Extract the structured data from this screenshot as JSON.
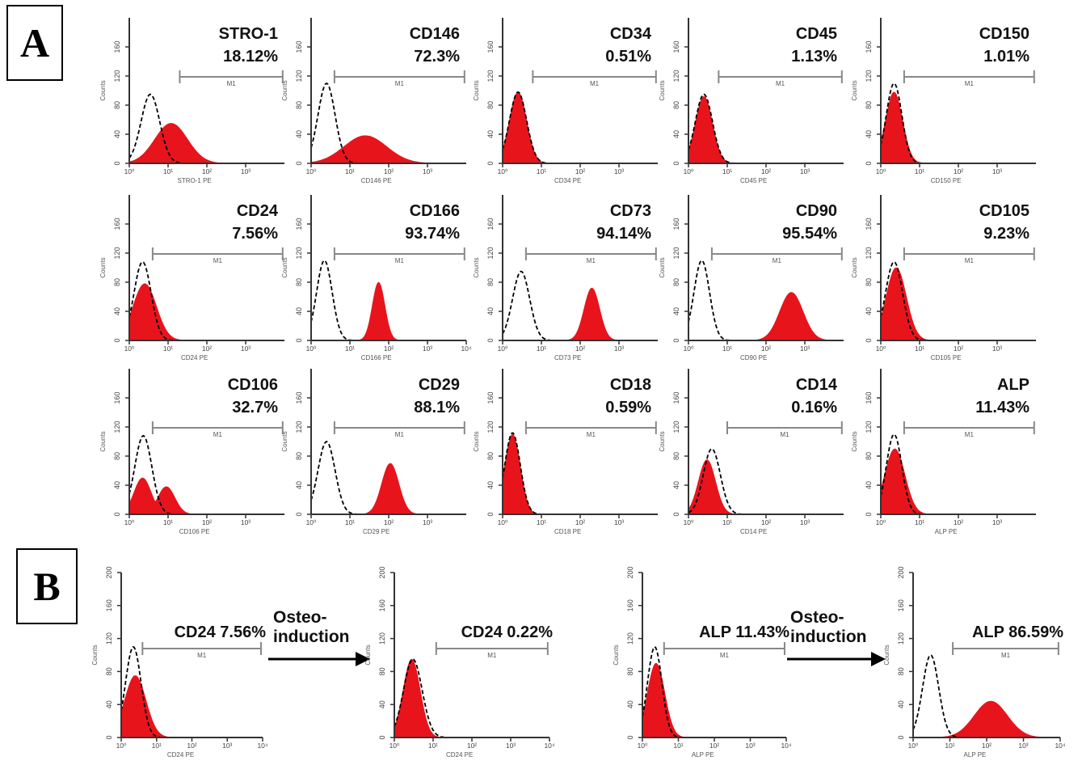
{
  "panels": {
    "a_label": "A",
    "b_label": "B"
  },
  "colors": {
    "stained": "#e8141c",
    "isotype": "#000000",
    "axis": "#333333",
    "gate": "#888888"
  },
  "arrows": [
    {
      "line1": "Osteo-",
      "line2": "induction"
    },
    {
      "line1": "Osteo-",
      "line2": "induction"
    }
  ],
  "chart_data": [
    {
      "type": "histogram",
      "marker": "STRO-1",
      "percent": "18.12%",
      "gate_label": "M1",
      "xlabel": "STRO-1 PE",
      "ylabel": "Counts",
      "x_scale": "log",
      "xlim": [
        1,
        10000
      ],
      "ylim": [
        0,
        200
      ],
      "yticks": [
        "0",
        "40",
        "80",
        "120",
        "160"
      ],
      "xticks": [
        "10⁰",
        "10¹",
        "10²",
        "10³"
      ],
      "gate": [
        20,
        9000
      ],
      "isotype": {
        "mode": 3.5,
        "width": 0.24,
        "peak": 95
      },
      "stained": [
        {
          "mode": 12,
          "width": 0.42,
          "peak": 55
        }
      ]
    },
    {
      "type": "histogram",
      "marker": "CD146",
      "percent": "72.3%",
      "gate_label": "M1",
      "xlabel": "CD146 PE",
      "ylabel": "Counts",
      "x_scale": "log",
      "xlim": [
        1,
        10000
      ],
      "ylim": [
        0,
        200
      ],
      "yticks": [
        "0",
        "40",
        "80",
        "120",
        "160"
      ],
      "xticks": [
        "10⁰",
        "10¹",
        "10²",
        "10³"
      ],
      "gate": [
        4,
        9000
      ],
      "isotype": {
        "mode": 2.5,
        "width": 0.22,
        "peak": 110
      },
      "stained": [
        {
          "mode": 25,
          "width": 0.55,
          "peak": 38
        }
      ]
    },
    {
      "type": "histogram",
      "marker": "CD34",
      "percent": "0.51%",
      "gate_label": "M1",
      "xlabel": "CD34 PE",
      "ylabel": "Counts",
      "x_scale": "log",
      "xlim": [
        1,
        10000
      ],
      "ylim": [
        0,
        200
      ],
      "yticks": [
        "0",
        "40",
        "80",
        "120",
        "160"
      ],
      "xticks": [
        "10⁰",
        "10¹",
        "10²",
        "10³"
      ],
      "gate": [
        6,
        9000
      ],
      "isotype": {
        "mode": 2.5,
        "width": 0.22,
        "peak": 98
      },
      "stained": [
        {
          "mode": 2.5,
          "width": 0.22,
          "peak": 98
        }
      ]
    },
    {
      "type": "histogram",
      "marker": "CD45",
      "percent": "1.13%",
      "gate_label": "M1",
      "xlabel": "CD45 PE",
      "ylabel": "Counts",
      "x_scale": "log",
      "xlim": [
        1,
        10000
      ],
      "ylim": [
        0,
        200
      ],
      "yticks": [
        "0",
        "40",
        "80",
        "120",
        "160"
      ],
      "xticks": [
        "10⁰",
        "10¹",
        "10²",
        "10³"
      ],
      "gate": [
        6,
        9000
      ],
      "isotype": {
        "mode": 2.5,
        "width": 0.22,
        "peak": 95
      },
      "stained": [
        {
          "mode": 2.5,
          "width": 0.22,
          "peak": 92
        }
      ]
    },
    {
      "type": "histogram",
      "marker": "CD150",
      "percent": "1.01%",
      "gate_label": "M1",
      "xlabel": "CD150 PE",
      "ylabel": "Counts",
      "x_scale": "log",
      "xlim": [
        1,
        10000
      ],
      "ylim": [
        0,
        200
      ],
      "yticks": [
        "0",
        "40",
        "80",
        "120",
        "160"
      ],
      "xticks": [
        "10⁰",
        "10¹",
        "10²",
        "10³"
      ],
      "gate": [
        4,
        9000
      ],
      "isotype": {
        "mode": 2.2,
        "width": 0.2,
        "peak": 110
      },
      "stained": [
        {
          "mode": 2.2,
          "width": 0.22,
          "peak": 98
        }
      ]
    },
    {
      "type": "histogram",
      "marker": "CD24",
      "percent": "7.56%",
      "gate_label": "M1",
      "xlabel": "CD24 PE",
      "ylabel": "Counts",
      "x_scale": "log",
      "xlim": [
        1,
        10000
      ],
      "ylim": [
        0,
        200
      ],
      "yticks": [
        "0",
        "40",
        "80",
        "120",
        "160"
      ],
      "xticks": [
        "10⁰",
        "10¹",
        "10²",
        "10³"
      ],
      "gate": [
        4,
        9000
      ],
      "isotype": {
        "mode": 2.2,
        "width": 0.22,
        "peak": 108
      },
      "stained": [
        {
          "mode": 2.5,
          "width": 0.3,
          "peak": 78
        }
      ]
    },
    {
      "type": "histogram",
      "marker": "CD166",
      "percent": "93.74%",
      "gate_label": "M1",
      "xlabel": "CD166 PE",
      "ylabel": "Counts",
      "x_scale": "log",
      "xlim": [
        1,
        10000
      ],
      "ylim": [
        0,
        200
      ],
      "yticks": [
        "0",
        "40",
        "80",
        "120",
        "160"
      ],
      "xticks": [
        "10⁰",
        "10¹",
        "10²",
        "10³",
        "10⁴"
      ],
      "gate": [
        4,
        9000
      ],
      "isotype": {
        "mode": 2.2,
        "width": 0.2,
        "peak": 110
      },
      "stained": [
        {
          "mode": 55,
          "width": 0.16,
          "peak": 80
        }
      ]
    },
    {
      "type": "histogram",
      "marker": "CD73",
      "percent": "94.14%",
      "gate_label": "M1",
      "xlabel": "CD73 PE",
      "ylabel": "Counts",
      "x_scale": "log",
      "xlim": [
        1,
        10000
      ],
      "ylim": [
        0,
        200
      ],
      "yticks": [
        "0",
        "40",
        "80",
        "120",
        "160"
      ],
      "xticks": [
        "10⁰",
        "10¹",
        "10²",
        "10³"
      ],
      "gate": [
        4,
        9000
      ],
      "isotype": {
        "mode": 3,
        "width": 0.22,
        "peak": 95
      },
      "stained": [
        {
          "mode": 200,
          "width": 0.2,
          "peak": 72
        }
      ]
    },
    {
      "type": "histogram",
      "marker": "CD90",
      "percent": "95.54%",
      "gate_label": "M1",
      "xlabel": "CD90 PE",
      "ylabel": "Counts",
      "x_scale": "log",
      "xlim": [
        1,
        10000
      ],
      "ylim": [
        0,
        200
      ],
      "yticks": [
        "0",
        "40",
        "80",
        "120",
        "160"
      ],
      "xticks": [
        "10⁰",
        "10¹",
        "10²",
        "10³"
      ],
      "gate": [
        4,
        9000
      ],
      "isotype": {
        "mode": 2.2,
        "width": 0.2,
        "peak": 110
      },
      "stained": [
        {
          "mode": 450,
          "width": 0.3,
          "peak": 66
        }
      ]
    },
    {
      "type": "histogram",
      "marker": "CD105",
      "percent": "9.23%",
      "gate_label": "M1",
      "xlabel": "CD105 PE",
      "ylabel": "Counts",
      "x_scale": "log",
      "xlim": [
        1,
        10000
      ],
      "ylim": [
        0,
        200
      ],
      "yticks": [
        "0",
        "40",
        "80",
        "120",
        "160"
      ],
      "xticks": [
        "10⁰",
        "10¹",
        "10²",
        "10³"
      ],
      "gate": [
        4,
        9000
      ],
      "isotype": {
        "mode": 2.2,
        "width": 0.22,
        "peak": 108
      },
      "stained": [
        {
          "mode": 2.5,
          "width": 0.26,
          "peak": 100
        }
      ]
    },
    {
      "type": "histogram",
      "marker": "CD106",
      "percent": "32.7%",
      "gate_label": "M1",
      "xlabel": "CD106 PE",
      "ylabel": "Counts",
      "x_scale": "log",
      "xlim": [
        1,
        10000
      ],
      "ylim": [
        0,
        200
      ],
      "yticks": [
        "0",
        "40",
        "80",
        "120",
        "160"
      ],
      "xticks": [
        "10⁰",
        "10¹",
        "10²",
        "10³"
      ],
      "gate": [
        4,
        9000
      ],
      "isotype": {
        "mode": 2.3,
        "width": 0.22,
        "peak": 108
      },
      "stained": [
        {
          "mode": 2.2,
          "width": 0.22,
          "peak": 50
        },
        {
          "mode": 9,
          "width": 0.22,
          "peak": 38
        }
      ]
    },
    {
      "type": "histogram",
      "marker": "CD29",
      "percent": "88.1%",
      "gate_label": "M1",
      "xlabel": "CD29 PE",
      "ylabel": "Counts",
      "x_scale": "log",
      "xlim": [
        1,
        10000
      ],
      "ylim": [
        0,
        200
      ],
      "yticks": [
        "0",
        "40",
        "80",
        "120",
        "160"
      ],
      "xticks": [
        "10⁰",
        "10¹",
        "10²",
        "10³"
      ],
      "gate": [
        4,
        9000
      ],
      "isotype": {
        "mode": 2.5,
        "width": 0.22,
        "peak": 100
      },
      "stained": [
        {
          "mode": 110,
          "width": 0.22,
          "peak": 70
        }
      ]
    },
    {
      "type": "histogram",
      "marker": "CD18",
      "percent": "0.59%",
      "gate_label": "M1",
      "xlabel": "CD18 PE",
      "ylabel": "Counts",
      "x_scale": "log",
      "xlim": [
        1,
        10000
      ],
      "ylim": [
        0,
        200
      ],
      "yticks": [
        "0",
        "40",
        "80",
        "120",
        "160"
      ],
      "xticks": [
        "10⁰",
        "10¹",
        "10²",
        "10³"
      ],
      "gate": [
        4,
        9000
      ],
      "isotype": {
        "mode": 1.8,
        "width": 0.2,
        "peak": 112
      },
      "stained": [
        {
          "mode": 1.8,
          "width": 0.2,
          "peak": 110
        }
      ]
    },
    {
      "type": "histogram",
      "marker": "CD14",
      "percent": "0.16%",
      "gate_label": "M1",
      "xlabel": "CD14 PE",
      "ylabel": "Counts",
      "x_scale": "log",
      "xlim": [
        1,
        10000
      ],
      "ylim": [
        0,
        200
      ],
      "yticks": [
        "0",
        "40",
        "80",
        "120",
        "160"
      ],
      "xticks": [
        "10⁰",
        "10¹",
        "10²",
        "10³"
      ],
      "gate": [
        10,
        9000
      ],
      "isotype": {
        "mode": 4,
        "width": 0.22,
        "peak": 90
      },
      "stained": [
        {
          "mode": 3,
          "width": 0.22,
          "peak": 75
        }
      ]
    },
    {
      "type": "histogram",
      "marker": "ALP",
      "percent": "11.43%",
      "gate_label": "M1",
      "xlabel": "ALP PE",
      "ylabel": "Counts",
      "x_scale": "log",
      "xlim": [
        1,
        10000
      ],
      "ylim": [
        0,
        200
      ],
      "yticks": [
        "0",
        "40",
        "80",
        "120",
        "160"
      ],
      "xticks": [
        "10⁰",
        "10¹",
        "10²",
        "10³"
      ],
      "gate": [
        4,
        9000
      ],
      "isotype": {
        "mode": 2.2,
        "width": 0.2,
        "peak": 110
      },
      "stained": [
        {
          "mode": 2.3,
          "width": 0.26,
          "peak": 90
        }
      ]
    },
    {
      "type": "histogram",
      "marker": "CD24",
      "percent": "7.56%",
      "gate_label": "M1",
      "xlabel": "CD24 PE",
      "ylabel": "Counts",
      "x_scale": "log",
      "xlim": [
        1,
        10000
      ],
      "ylim": [
        0,
        200
      ],
      "yticks": [
        "0",
        "40",
        "80",
        "120",
        "160",
        "200"
      ],
      "xticks": [
        "10⁰",
        "10¹",
        "10²",
        "10³",
        "10⁴"
      ],
      "gate": [
        4,
        9000
      ],
      "isotype": {
        "mode": 2.2,
        "width": 0.22,
        "peak": 110
      },
      "stained": [
        {
          "mode": 2.5,
          "width": 0.3,
          "peak": 75
        }
      ]
    },
    {
      "type": "histogram",
      "marker": "CD24",
      "percent": "0.22%",
      "gate_label": "M1",
      "xlabel": "CD24 PE",
      "ylabel": "Counts",
      "x_scale": "log",
      "xlim": [
        1,
        10000
      ],
      "ylim": [
        0,
        200
      ],
      "yticks": [
        "0",
        "40",
        "80",
        "120",
        "160",
        "200"
      ],
      "xticks": [
        "10⁰",
        "10¹",
        "10²",
        "10³",
        "10⁴"
      ],
      "gate": [
        12,
        9000
      ],
      "isotype": {
        "mode": 3,
        "width": 0.24,
        "peak": 95
      },
      "stained": [
        {
          "mode": 2.8,
          "width": 0.22,
          "peak": 95
        }
      ]
    },
    {
      "type": "histogram",
      "marker": "ALP",
      "percent": "11.43%",
      "gate_label": "M1",
      "xlabel": "ALP PE",
      "ylabel": "Counts",
      "x_scale": "log",
      "xlim": [
        1,
        10000
      ],
      "ylim": [
        0,
        200
      ],
      "yticks": [
        "0",
        "40",
        "80",
        "120",
        "160",
        "200"
      ],
      "xticks": [
        "10⁰",
        "10¹",
        "10²",
        "10³",
        "10⁴"
      ],
      "gate": [
        4,
        9000
      ],
      "isotype": {
        "mode": 2.2,
        "width": 0.2,
        "peak": 110
      },
      "stained": [
        {
          "mode": 2.4,
          "width": 0.24,
          "peak": 90
        }
      ]
    },
    {
      "type": "histogram",
      "marker": "ALP",
      "percent": "86.59%",
      "gate_label": "M1",
      "xlabel": "ALP PE",
      "ylabel": "Counts",
      "x_scale": "log",
      "xlim": [
        1,
        10000
      ],
      "ylim": [
        0,
        200
      ],
      "yticks": [
        "0",
        "40",
        "80",
        "120",
        "160",
        "200"
      ],
      "xticks": [
        "10⁰",
        "10¹",
        "10²",
        "10³",
        "10⁴"
      ],
      "gate": [
        12,
        9000
      ],
      "isotype": {
        "mode": 3,
        "width": 0.22,
        "peak": 100
      },
      "stained": [
        {
          "mode": 130,
          "width": 0.45,
          "peak": 44
        }
      ]
    }
  ]
}
